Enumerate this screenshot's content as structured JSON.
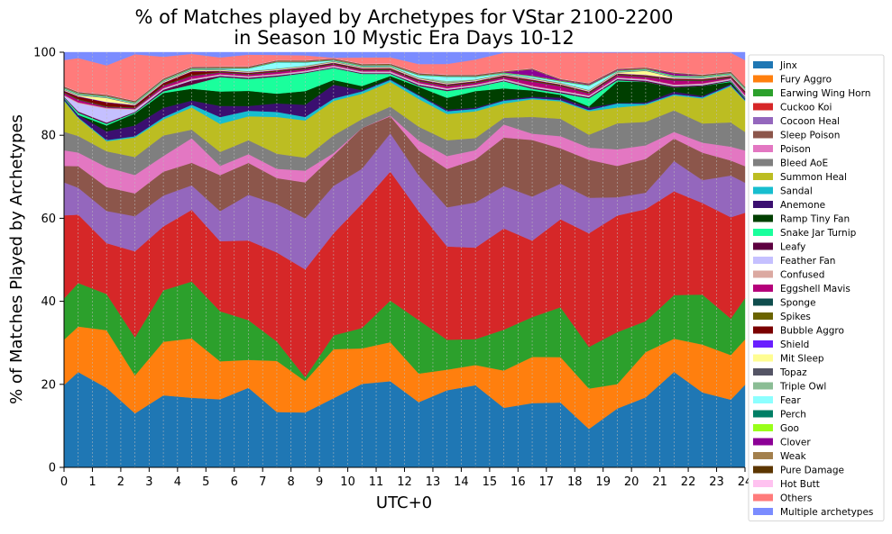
{
  "chart_data": {
    "type": "area",
    "title": "% of Matches played by Archetypes for VStar 2100-2200",
    "subtitle": "in Season 10 Mystic Era Days 10-12",
    "xlabel": "UTC+0",
    "ylabel": "% of Matches Played by Archetypes",
    "xlim": [
      0,
      24
    ],
    "ylim": [
      0,
      100
    ],
    "x_ticks": [
      0,
      1,
      2,
      3,
      4,
      5,
      6,
      7,
      8,
      9,
      10,
      11,
      12,
      13,
      14,
      15,
      16,
      17,
      18,
      19,
      20,
      21,
      22,
      23,
      24
    ],
    "x_tick_labels": [
      "0",
      "1",
      "2",
      "3",
      "4",
      "5",
      "6",
      "7",
      "8",
      "9",
      "10",
      "11",
      "12",
      "13",
      "14",
      "15",
      "16",
      "17",
      "18",
      "19",
      "20",
      "21",
      "22",
      "23",
      "24"
    ],
    "y_ticks": [
      0,
      20,
      40,
      60,
      80,
      100
    ],
    "y_tick_labels": [
      "0",
      "20",
      "40",
      "60",
      "80",
      "100"
    ],
    "grid": "vertical dashed",
    "legend_position": "right",
    "x": [
      0,
      0.5,
      1.5,
      2.5,
      3.5,
      4.5,
      5.5,
      6.5,
      7.5,
      8.5,
      9.5,
      10.5,
      11.5,
      12.5,
      13.5,
      14.5,
      15.5,
      16.5,
      17.5,
      18.5,
      19.5,
      20.5,
      21.5,
      22.5,
      23.5,
      24
    ],
    "series": [
      {
        "name": "Jinx",
        "color": "#1f77b4",
        "values": [
          20,
          23,
          20,
          13.5,
          17.5,
          17,
          17,
          20,
          14.3,
          14,
          17.5,
          20.5,
          20.3,
          15.5,
          19.1,
          20.3,
          15,
          15.3,
          16,
          9.5,
          14.5,
          17,
          23,
          18,
          16.7,
          20
        ]
      },
      {
        "name": "Fury Aggro",
        "color": "#ff7f0e",
        "values": [
          11,
          11,
          14.5,
          9.5,
          13,
          14.5,
          9.5,
          7,
          13.2,
          8,
          12.4,
          8.7,
          9.2,
          6.8,
          5.1,
          5,
          9.4,
          11,
          11.2,
          10,
          6,
          11,
          8,
          11.5,
          11,
          11
        ]
      },
      {
        "name": "Earwing Wing Horn",
        "color": "#2ca02c",
        "values": [
          10,
          10.5,
          9.1,
          9.5,
          12.5,
          13.9,
          12.5,
          10,
          5,
          1,
          3.5,
          5,
          9.8,
          12.7,
          7.4,
          6.4,
          10.3,
          9.5,
          12.3,
          10.3,
          12.8,
          7.5,
          10.5,
          12,
          9,
          10
        ]
      },
      {
        "name": "Cuckoo Koi",
        "color": "#d62728",
        "values": [
          20.2,
          16.5,
          12.8,
          21.5,
          15.5,
          17.5,
          17.5,
          20,
          23,
          27.5,
          25.8,
          30.5,
          30.4,
          25.9,
          23.1,
          22.6,
          25.5,
          18.2,
          21.7,
          28.1,
          28.7,
          27.2,
          25,
          22,
          25,
          20.7
        ]
      },
      {
        "name": "Cocoon Heal",
        "color": "#9467bd",
        "values": [
          8,
          6.5,
          8.1,
          8.8,
          7.5,
          6,
          7.5,
          11.5,
          12.5,
          13,
          12,
          8.6,
          9,
          8.5,
          9.7,
          11.2,
          10.7,
          10.5,
          8.8,
          8.8,
          4.5,
          4,
          7.3,
          5.5,
          10.3,
          7.3
        ]
      },
      {
        "name": "Sleep Poison",
        "color": "#8c564b",
        "values": [
          4,
          5.2,
          6,
          5.7,
          5.8,
          5.5,
          9,
          8,
          6.7,
          9.2,
          7.7,
          10,
          4,
          6,
          9.5,
          10.6,
          12.2,
          13.5,
          8.7,
          9.4,
          7.7,
          8.2,
          5.4,
          6.6,
          3.7,
          4
        ]
      },
      {
        "name": "Poison",
        "color": "#e377c2",
        "values": [
          3.8,
          3.3,
          5,
          4.6,
          3.8,
          6,
          2.3,
          2.2,
          2.4,
          3,
          0.6,
          0,
          0.2,
          2.3,
          3.2,
          2.3,
          3.3,
          1.5,
          3,
          3,
          4.1,
          3.3,
          1.6,
          2.4,
          3.4,
          3.8
        ]
      },
      {
        "name": "Bleed AoE",
        "color": "#7f7f7f",
        "values": [
          4.5,
          4,
          4,
          4.5,
          5,
          2.1,
          3.5,
          3.5,
          3.9,
          3.3,
          4.5,
          2.2,
          2.1,
          3.3,
          3.9,
          3,
          1.7,
          4,
          4.3,
          3.2,
          6.4,
          5.7,
          5.2,
          4.6,
          6,
          4.5
        ]
      },
      {
        "name": "Summon Heal",
        "color": "#bcbd22",
        "values": [
          7.5,
          4.3,
          2.5,
          4.9,
          3.9,
          5.4,
          7,
          6,
          9.5,
          9.5,
          8.7,
          6.2,
          5.8,
          6.6,
          6.5,
          6.6,
          3.6,
          4.2,
          4.3,
          5.8,
          3.9,
          4.1,
          3.6,
          6,
          8.9,
          7.5
        ]
      },
      {
        "name": "Sandal",
        "color": "#17becf",
        "values": [
          0.2,
          0.2,
          0.3,
          0.3,
          0.5,
          0.7,
          1.7,
          1.4,
          1.3,
          0.9,
          0.6,
          0.6,
          0.5,
          0.8,
          0.7,
          0.6,
          0.7,
          0.3,
          0.3,
          0.3,
          1,
          0.3,
          0.3,
          0.3,
          0.3,
          0.2
        ]
      },
      {
        "name": "Anemone",
        "color": "#3b0f70",
        "values": [
          0.4,
          0.6,
          2.2,
          2.7,
          2.3,
          1,
          2.8,
          1.2,
          2.2,
          3.1,
          3.5,
          0.3,
          0.2,
          0.2,
          0.4,
          0.3,
          0.2,
          0.3,
          0.6,
          0.6,
          0.1,
          0.3,
          0.6,
          0.3,
          0.3,
          0.4
        ]
      },
      {
        "name": "Ramp Tiny Fan",
        "color": "#003f00",
        "values": [
          0,
          0,
          1.5,
          3,
          3.6,
          2.9,
          3.6,
          3.8,
          2.5,
          3.5,
          1.2,
          1,
          0.7,
          1.9,
          2.9,
          4.1,
          2.9,
          1.5,
          0.7,
          0.3,
          5.3,
          5,
          1,
          2.4,
          0.5,
          0
        ]
      },
      {
        "name": "Snake Jar Turnip",
        "color": "#1aff9c",
        "values": [
          0.2,
          0.5,
          0.4,
          0.2,
          0.4,
          1,
          3.6,
          3,
          4.4,
          4.6,
          3,
          3,
          0.5,
          0.2,
          1.7,
          1,
          1.8,
          0.4,
          0.4,
          2,
          0.3,
          0,
          0,
          0,
          0.2,
          0.2
        ]
      },
      {
        "name": "Leafy",
        "color": "#5e0040",
        "values": [
          0.2,
          0.3,
          0.3,
          0.2,
          0.4,
          1,
          0.3,
          0.3,
          0.3,
          0.2,
          0.2,
          0.2,
          0.2,
          0.3,
          0.3,
          0.2,
          0.2,
          0.3,
          0.3,
          0.3,
          0.3,
          0.3,
          0.3,
          0.2,
          0.2,
          0.2
        ]
      },
      {
        "name": "Feather Fan",
        "color": "#c5c0ff",
        "values": [
          0.2,
          2,
          3.5,
          0.5,
          0.2,
          0.2,
          0.2,
          0.2,
          0.2,
          0.2,
          0.2,
          0.2,
          0.2,
          0.2,
          0.2,
          0.2,
          0.2,
          0.2,
          0.2,
          0.2,
          0.2,
          0.2,
          0.2,
          0.2,
          0.2,
          0.2
        ]
      },
      {
        "name": "Confused",
        "color": "#dba9a1",
        "values": [
          0.2,
          0.2,
          0.2,
          0.2,
          0.2,
          0.2,
          0.2,
          0.2,
          0.2,
          0.2,
          0.2,
          0.2,
          0.2,
          0.2,
          0.2,
          0.2,
          0.2,
          0.2,
          0.2,
          0.2,
          0.2,
          0.2,
          0.2,
          0.2,
          0.2,
          0.2
        ]
      },
      {
        "name": "Eggshell Mavis",
        "color": "#b5007a",
        "values": [
          0.5,
          0.6,
          0.2,
          0.2,
          0.5,
          0.7,
          0.4,
          0.4,
          0.5,
          0.4,
          0.3,
          0.3,
          0.3,
          0.4,
          0.5,
          0.4,
          0.4,
          1,
          1,
          0.5,
          0.5,
          0.5,
          1,
          0.6,
          0.2,
          0.5
        ]
      },
      {
        "name": "Sponge",
        "color": "#0f4d4d",
        "values": [
          0.1,
          0.1,
          0.1,
          0.1,
          0.1,
          0.1,
          0.1,
          0.1,
          0.1,
          0.1,
          0.1,
          0.1,
          0.1,
          0.1,
          0.1,
          0.1,
          0.1,
          0.1,
          0.1,
          0.1,
          0.1,
          0.1,
          0.1,
          0.1,
          0.1,
          0.1
        ]
      },
      {
        "name": "Spikes",
        "color": "#6b6400",
        "values": [
          0.1,
          0.1,
          0.1,
          0.1,
          0.1,
          0.1,
          0.1,
          0.1,
          0.1,
          0.1,
          0.1,
          0.1,
          0.1,
          0.1,
          0.1,
          0.1,
          0.1,
          0.1,
          0.1,
          0.1,
          0.1,
          0.1,
          0.1,
          0.1,
          0.1,
          0.1
        ]
      },
      {
        "name": "Bubble Aggro",
        "color": "#7a0000",
        "values": [
          0.3,
          0.6,
          1,
          0.5,
          0.5,
          0.9,
          0.2,
          0.2,
          0.2,
          0.2,
          0.2,
          0.2,
          0.2,
          0.2,
          0.2,
          0.2,
          0.2,
          0.2,
          0.2,
          0.2,
          0.2,
          0.2,
          0.2,
          0.2,
          0.2,
          0.3
        ]
      },
      {
        "name": "Shield",
        "color": "#6a1fff",
        "values": [
          0.1,
          0.1,
          0.1,
          0.1,
          0.1,
          0.1,
          0.1,
          0.1,
          0.1,
          0.1,
          0.1,
          0.1,
          0.1,
          0.1,
          0.1,
          0.1,
          0.1,
          0.1,
          0.1,
          0.1,
          0.1,
          0.1,
          0.1,
          0.1,
          0.1,
          0.1
        ]
      },
      {
        "name": "Mit Sleep",
        "color": "#fffd92",
        "values": [
          0.2,
          0.2,
          1,
          0.2,
          0.2,
          0.2,
          0.2,
          0.2,
          0.2,
          0.2,
          0.2,
          0.2,
          0.2,
          0.2,
          0.2,
          0.2,
          0.2,
          0.2,
          0.2,
          0.2,
          0.2,
          1,
          0.2,
          0.2,
          0.2,
          0.2
        ]
      },
      {
        "name": "Topaz",
        "color": "#545465",
        "values": [
          0.1,
          0.1,
          0.1,
          0.1,
          0.1,
          0.1,
          0.1,
          0.1,
          0.1,
          0.1,
          0.1,
          0.1,
          0.1,
          0.1,
          0.1,
          0.1,
          0.1,
          0.1,
          0.1,
          0.1,
          0.1,
          0.1,
          0.1,
          0.1,
          0.1,
          0.1
        ]
      },
      {
        "name": "Triple Owl",
        "color": "#8bbd95",
        "values": [
          0.1,
          0.1,
          0.1,
          0.1,
          0.1,
          0.1,
          0.1,
          0.1,
          0.1,
          0.1,
          0.1,
          0.1,
          0.1,
          0.1,
          0.5,
          0.1,
          0.1,
          0.1,
          0.1,
          0.1,
          0.1,
          0.1,
          0.1,
          0.1,
          0.1,
          0.1
        ]
      },
      {
        "name": "Fear",
        "color": "#8cffff",
        "values": [
          0.1,
          0.1,
          0.1,
          0.1,
          0.1,
          0.1,
          0.1,
          0.6,
          1.6,
          0.8,
          0.1,
          0.1,
          0.1,
          0.5,
          1,
          0.6,
          0.1,
          0.3,
          0.3,
          1,
          0.1,
          0.1,
          0.1,
          0.1,
          0.1,
          0.1
        ]
      },
      {
        "name": "Perch",
        "color": "#007f66",
        "values": [
          0.1,
          0.1,
          0.1,
          0.1,
          0.1,
          0.1,
          0.1,
          0.1,
          0.1,
          0.1,
          0.1,
          0.1,
          0.1,
          0.1,
          0.1,
          0.1,
          0.1,
          0.1,
          0.1,
          0.1,
          0.1,
          0.1,
          0.1,
          0.1,
          0.1,
          0.1
        ]
      },
      {
        "name": "Goo",
        "color": "#99ff1a",
        "values": [
          0.1,
          0.1,
          0.1,
          0.1,
          0.1,
          0.1,
          0.1,
          0.1,
          0.1,
          0.1,
          0.1,
          0.1,
          0.1,
          0.1,
          0.1,
          0.1,
          0.1,
          0.1,
          0.1,
          0.1,
          0.1,
          0.1,
          0.1,
          0.1,
          0.1,
          0.1
        ]
      },
      {
        "name": "Clover",
        "color": "#8c0096",
        "values": [
          0.1,
          0.1,
          0.1,
          0.1,
          0.1,
          0.1,
          0.1,
          0.1,
          0.1,
          0.1,
          0.1,
          0.1,
          0.1,
          0.1,
          0.1,
          0.1,
          0.1,
          1.5,
          0.2,
          0.2,
          0.2,
          0.1,
          0.5,
          0.1,
          0.1,
          0.1
        ]
      },
      {
        "name": "Weak",
        "color": "#a3804d",
        "values": [
          0.1,
          0.1,
          0.1,
          0.1,
          0.1,
          0.1,
          0.1,
          0.1,
          0.1,
          0.1,
          0.1,
          0.1,
          0.1,
          0.1,
          0.1,
          0.1,
          0.1,
          0.1,
          0.1,
          0.1,
          0.1,
          0.1,
          0.1,
          0.1,
          0.1,
          0.1
        ]
      },
      {
        "name": "Pure Damage",
        "color": "#5c3600",
        "values": [
          0.1,
          0.1,
          0.1,
          0.1,
          0.1,
          0.1,
          0.1,
          0.1,
          0.1,
          0.1,
          0.1,
          0.1,
          0.1,
          0.1,
          0.1,
          0.1,
          0.1,
          0.1,
          0.1,
          0.1,
          0.1,
          0.1,
          0.1,
          0.1,
          0.1,
          0.1
        ]
      },
      {
        "name": "Hot Butt",
        "color": "#ffc2f0",
        "values": [
          0.1,
          0.1,
          0.1,
          0.1,
          0.1,
          0.1,
          0.1,
          0.1,
          0.1,
          0.1,
          0.1,
          0.1,
          0.1,
          0.1,
          0.1,
          0.1,
          0.1,
          0.1,
          0.1,
          0.1,
          0.1,
          0.1,
          0.1,
          0.1,
          0.1,
          0.1
        ]
      },
      {
        "name": "Others",
        "color": "#ff7b7b",
        "values": [
          6.3,
          8.1,
          7.3,
          11.6,
          5.2,
          3.1,
          2.2,
          2.9,
          1.3,
          1.2,
          0.1,
          1.5,
          1.4,
          2.1,
          2.6,
          3.7,
          4.6,
          3.7,
          6.4,
          7.5,
          3.9,
          3.5,
          4.7,
          5.2,
          4.6,
          6.3
        ]
      },
      {
        "name": "Multiple archetypes",
        "color": "#7b8cff",
        "values": [
          1.9,
          1.4,
          3.3,
          0.5,
          1.1,
          0.4,
          1.3,
          0.6,
          0.7,
          0.8,
          1.4,
          1.3,
          1.2,
          2.8,
          2.9,
          1.8,
          0.1,
          0.1,
          0.1,
          0.1,
          0.1,
          0.1,
          0.1,
          0.1,
          0.1,
          1.9
        ]
      }
    ]
  }
}
